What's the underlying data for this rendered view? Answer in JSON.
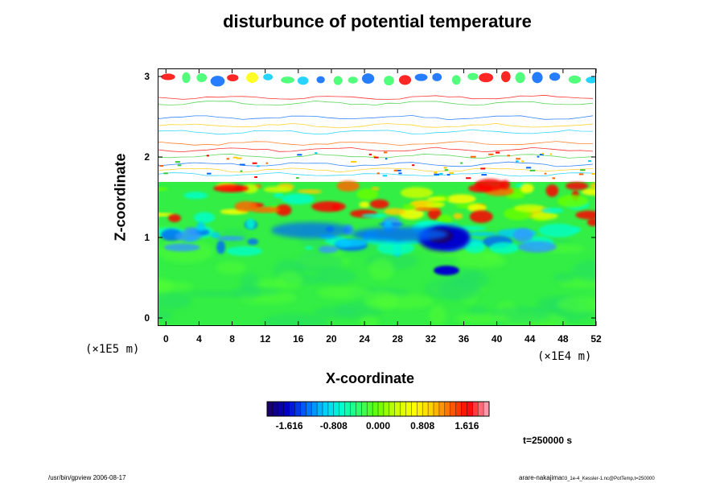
{
  "chart_data": {
    "type": "heatmap",
    "title": "disturbunce of potential temperature",
    "xlabel": "X-coordinate",
    "ylabel": "Z-coordinate",
    "x_unit": "(×1E4 m)",
    "y_unit": "(×1E5 m)",
    "xlim": [
      -1,
      52
    ],
    "ylim": [
      -0.1,
      3.1
    ],
    "x_ticks": [
      "0",
      "4",
      "8",
      "12",
      "16",
      "20",
      "24",
      "28",
      "32",
      "36",
      "40",
      "44",
      "48",
      "52"
    ],
    "y_ticks": [
      "0",
      "1",
      "2",
      "3"
    ],
    "colorbar": {
      "ticks": [
        "-1.616",
        "-0.808",
        "0.000",
        "0.808",
        "1.616"
      ],
      "range": [
        -2.02,
        2.02
      ],
      "colors": [
        "#1a006b",
        "#0000cc",
        "#0066ff",
        "#00ccff",
        "#00ffcc",
        "#33ff66",
        "#66ff00",
        "#ccff00",
        "#ffff00",
        "#ffcc00",
        "#ff6600",
        "#ff0000",
        "#ff99aa"
      ]
    },
    "regions": {
      "background_green": "#33ee44",
      "top_layer_white": "#ffffff"
    }
  },
  "time_label": "t=250000 s",
  "footer_left": "/usr/bin/gpview 2006-08-17",
  "footer_right": "arare-nakajima",
  "footer_right_small": "03_1e-4_Kessler-1.nc@PotTemp,t=250000"
}
